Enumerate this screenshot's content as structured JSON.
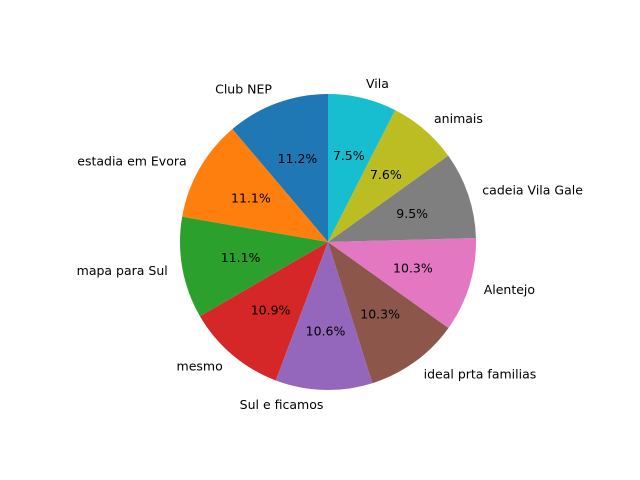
{
  "chart_data": {
    "type": "pie",
    "start_angle_deg": 90,
    "direction": "counterclockwise",
    "slices": [
      {
        "label": "Club NEP",
        "value": 11.2,
        "pct_label": "11.2%",
        "color": "#1f77b4"
      },
      {
        "label": "estadia em Evora",
        "value": 11.1,
        "pct_label": "11.1%",
        "color": "#ff7f0e"
      },
      {
        "label": "mapa para Sul",
        "value": 11.1,
        "pct_label": "11.1%",
        "color": "#2ca02c"
      },
      {
        "label": "mesmo",
        "value": 10.9,
        "pct_label": "10.9%",
        "color": "#d62728"
      },
      {
        "label": "Sul e ficamos",
        "value": 10.6,
        "pct_label": "10.6%",
        "color": "#9467bd"
      },
      {
        "label": "ideal prta familias",
        "value": 10.3,
        "pct_label": "10.3%",
        "color": "#8c564b"
      },
      {
        "label": "Alentejo",
        "value": 10.3,
        "pct_label": "10.3%",
        "color": "#e377c2"
      },
      {
        "label": "cadeia Vila Gale",
        "value": 9.5,
        "pct_label": "9.5%",
        "color": "#7f7f7f"
      },
      {
        "label": "animais",
        "value": 7.6,
        "pct_label": "7.6%",
        "color": "#bcbd22"
      },
      {
        "label": "Vila",
        "value": 7.5,
        "pct_label": "7.5%",
        "color": "#17becf"
      }
    ]
  }
}
